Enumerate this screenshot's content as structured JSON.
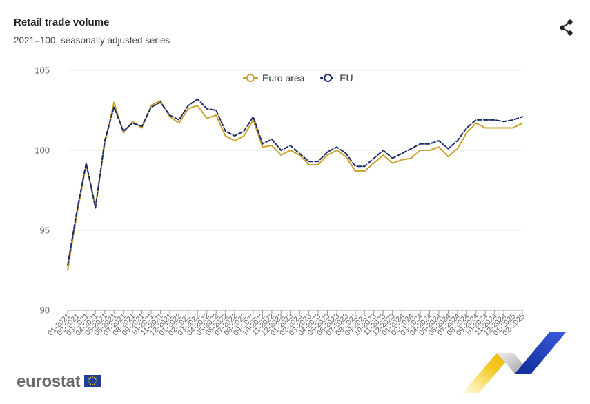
{
  "header": {
    "title": "Retail trade volume",
    "subtitle": "2021=100, seasonally adjusted series",
    "share_icon": "share-icon"
  },
  "footer": {
    "brand": "eurostat",
    "flag_icon": "eu-flag-icon"
  },
  "colors": {
    "euro_area": "#C9A227",
    "eu": "#1B2A6B",
    "grid": "#e6e6e6",
    "axis": "#999999",
    "text": "#666666"
  },
  "chart_data": {
    "type": "line",
    "title": "Retail trade volume",
    "subtitle": "2021=100, seasonally adjusted series",
    "xlabel": "",
    "ylabel": "",
    "ylim": [
      90,
      105
    ],
    "y_ticks": [
      90,
      95,
      100,
      105
    ],
    "grid": true,
    "legend_position": "top-center",
    "categories": [
      "01-2021",
      "02-2021",
      "03-2021",
      "04-2021",
      "05-2021",
      "06-2021",
      "07-2021",
      "08-2021",
      "09-2021",
      "10-2021",
      "11-2021",
      "12-2021",
      "01-2022",
      "02-2022",
      "03-2022",
      "04-2022",
      "05-2022",
      "06-2022",
      "07-2022",
      "08-2022",
      "09-2022",
      "10-2022",
      "11-2022",
      "12-2022",
      "01-2023",
      "02-2023",
      "03-2023",
      "04-2023",
      "05-2023",
      "06-2023",
      "07-2023",
      "08-2023",
      "09-2023",
      "10-2023",
      "11-2023",
      "12-2023",
      "01-2024",
      "02-2024",
      "03-2024",
      "04-2024",
      "05-2024",
      "06-2024",
      "07-2024",
      "08-2024",
      "09-2024",
      "10-2024",
      "11-2024",
      "12-2024",
      "01-2025",
      "02-2025"
    ],
    "series": [
      {
        "name": "Euro area",
        "color": "#C9A227",
        "style": "solid",
        "values": [
          92.5,
          96.0,
          99.1,
          96.5,
          100.4,
          103.0,
          101.1,
          101.8,
          101.4,
          102.8,
          103.1,
          102.1,
          101.7,
          102.6,
          102.8,
          102.0,
          102.2,
          100.9,
          100.6,
          100.9,
          101.9,
          100.2,
          100.3,
          99.7,
          100.0,
          99.7,
          99.1,
          99.1,
          99.7,
          100.0,
          99.6,
          98.7,
          98.7,
          99.2,
          99.7,
          99.2,
          99.4,
          99.5,
          100.0,
          100.0,
          100.2,
          99.6,
          100.1,
          101.1,
          101.7,
          101.4,
          101.4,
          101.4,
          101.4,
          101.7
        ]
      },
      {
        "name": "EU",
        "color": "#1B2A6B",
        "style": "dashed",
        "values": [
          92.8,
          96.2,
          99.2,
          96.4,
          100.6,
          102.7,
          101.2,
          101.7,
          101.5,
          102.7,
          103.0,
          102.2,
          101.9,
          102.8,
          103.2,
          102.6,
          102.5,
          101.2,
          100.9,
          101.2,
          102.1,
          100.4,
          100.7,
          100.0,
          100.3,
          99.8,
          99.3,
          99.3,
          99.9,
          100.2,
          99.8,
          99.0,
          99.0,
          99.5,
          100.0,
          99.5,
          99.8,
          100.1,
          100.4,
          100.4,
          100.6,
          100.1,
          100.6,
          101.4,
          101.9,
          101.9,
          101.9,
          101.8,
          101.9,
          102.1
        ]
      }
    ]
  }
}
